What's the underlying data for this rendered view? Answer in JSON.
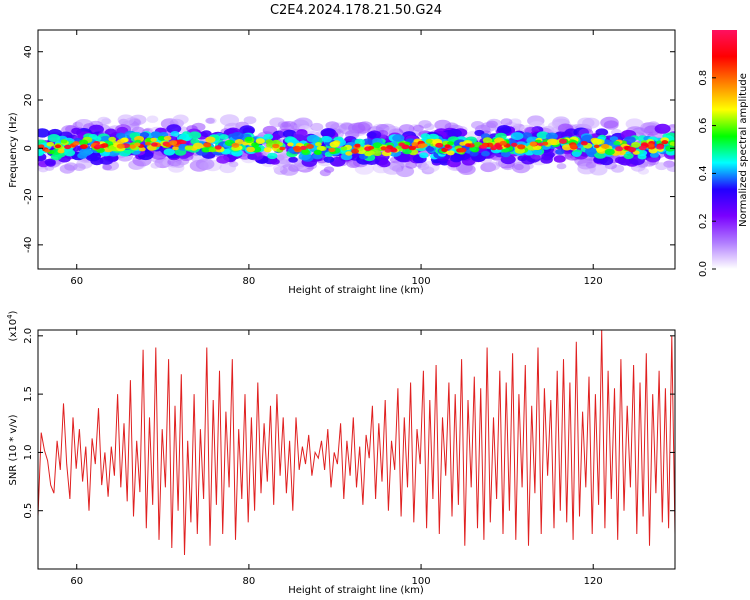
{
  "title": "C2E4.2024.178.21.50.G24",
  "chart_data": [
    {
      "type": "heatmap",
      "xlabel": "Height of straight line (km)",
      "ylabel": "Frequency (Hz)",
      "xlim": [
        55.5,
        129.5
      ],
      "ylim": [
        -50,
        49
      ],
      "xticks": [
        60,
        80,
        100,
        120
      ],
      "yticks": [
        -40,
        -20,
        0,
        20,
        40
      ],
      "ridge_center_hz": [
        [
          56,
          0
        ],
        [
          60,
          1
        ],
        [
          64,
          1.5
        ],
        [
          68,
          2
        ],
        [
          72,
          2
        ],
        [
          76,
          1.5
        ],
        [
          80,
          2
        ],
        [
          84,
          0.5
        ],
        [
          88,
          0
        ],
        [
          92,
          0
        ],
        [
          96,
          0
        ],
        [
          100,
          1
        ],
        [
          104,
          0
        ],
        [
          108,
          1
        ],
        [
          112,
          1.5
        ],
        [
          116,
          2
        ],
        [
          120,
          1
        ],
        [
          124,
          0
        ],
        [
          128,
          1.5
        ]
      ],
      "ridge_halfwidth_hz": 3,
      "colorbar": {
        "label": "Normalized spectral amplitude",
        "range": [
          0,
          1
        ],
        "ticks": [
          0.0,
          0.2,
          0.4,
          0.6,
          0.8
        ],
        "tick_labels": [
          "0.0",
          "0.2",
          "0.4",
          "0.6",
          "0.8"
        ],
        "colors": [
          "#ffffff",
          "#b07cff",
          "#7a00ff",
          "#2200ff",
          "#00ffff",
          "#00ff00",
          "#ffff00",
          "#ff8000",
          "#ff0000",
          "#ff1060"
        ]
      },
      "colormap": "rainbow"
    },
    {
      "type": "line",
      "xlabel": "Height of straight line (km)",
      "ylabel": "SNR (10 * v/v)",
      "y_scale_label": "(x10^4)",
      "y_scale_base": "(x10",
      "y_scale_exp": "4",
      "y_scale_close": ")",
      "xlim": [
        55.5,
        129.5
      ],
      "ylim": [
        0.0,
        2.05
      ],
      "xticks": [
        60,
        80,
        100,
        120
      ],
      "yticks": [
        0.5,
        1.0,
        1.5,
        2.0
      ],
      "ytick_labels": [
        "0.5",
        "1.0",
        "1.5",
        "2.0"
      ],
      "series": [
        {
          "color": "#e02020",
          "x_start": 55.5,
          "x_end": 129.5,
          "y": [
            0.45,
            1.17,
            1.02,
            0.93,
            0.72,
            0.65,
            1.1,
            0.85,
            1.42,
            0.9,
            0.6,
            1.3,
            0.86,
            1.2,
            0.75,
            1.05,
            0.5,
            1.12,
            0.9,
            1.38,
            0.72,
            1.0,
            0.62,
            1.05,
            0.8,
            1.5,
            0.7,
            1.25,
            0.58,
            1.62,
            0.45,
            1.1,
            0.66,
            1.88,
            0.35,
            1.3,
            0.55,
            1.9,
            0.25,
            1.2,
            0.7,
            1.8,
            0.18,
            1.4,
            0.5,
            1.67,
            0.12,
            1.1,
            0.4,
            1.5,
            0.3,
            1.2,
            0.6,
            1.9,
            0.2,
            1.45,
            0.55,
            1.7,
            0.3,
            1.35,
            0.7,
            1.8,
            0.25,
            1.2,
            0.6,
            1.5,
            0.4,
            1.3,
            0.5,
            1.6,
            0.65,
            1.25,
            0.75,
            1.4,
            0.55,
            1.5,
            0.8,
            1.3,
            0.65,
            1.1,
            0.5,
            1.3,
            0.85,
            1.05,
            0.9,
            1.15,
            0.8,
            1.0,
            0.95,
            1.1,
            0.85,
            1.2,
            0.7,
            1.0,
            0.9,
            1.25,
            0.6,
            1.1,
            0.8,
            1.3,
            0.7,
            1.05,
            0.55,
            1.15,
            0.95,
            1.4,
            0.6,
            1.25,
            0.75,
            1.45,
            0.5,
            1.1,
            0.85,
            1.55,
            0.45,
            1.3,
            0.7,
            1.6,
            0.4,
            1.2,
            0.9,
            1.7,
            0.35,
            1.45,
            0.6,
            1.75,
            0.3,
            1.3,
            0.8,
            1.6,
            0.45,
            1.5,
            0.55,
            1.8,
            0.2,
            1.45,
            0.7,
            1.65,
            0.35,
            1.55,
            0.25,
            1.9,
            0.4,
            1.3,
            0.6,
            1.7,
            0.3,
            1.6,
            0.5,
            1.85,
            0.25,
            1.5,
            0.7,
            1.75,
            0.2,
            1.4,
            0.65,
            1.9,
            0.3,
            1.55,
            0.8,
            1.45,
            0.35,
            1.7,
            0.5,
            1.8,
            0.4,
            1.6,
            0.25,
            1.95,
            0.45,
            1.35,
            0.7,
            1.65,
            0.3,
            1.5,
            0.55,
            2.05,
            0.35,
            1.7,
            0.6,
            1.55,
            0.25,
            1.8,
            0.5,
            1.4,
            0.7,
            1.75,
            0.3,
            1.6,
            0.45,
            1.85,
            0.2,
            1.5,
            0.65,
            1.7,
            0.4,
            1.55,
            0.35,
            2.0,
            0.3
          ]
        }
      ]
    }
  ]
}
